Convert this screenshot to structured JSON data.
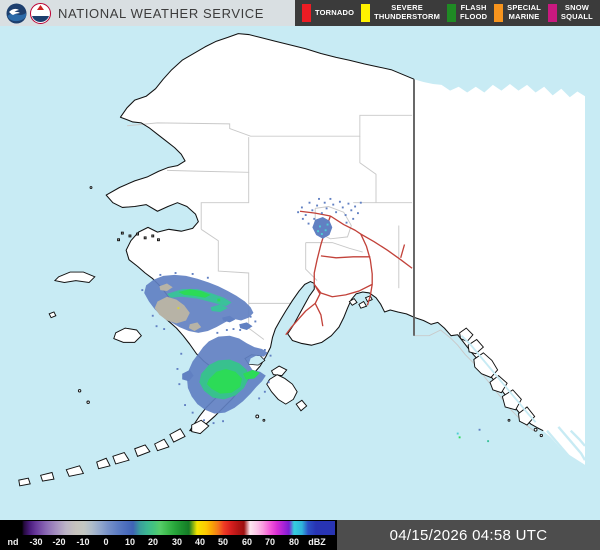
{
  "header": {
    "title": "NATIONAL WEATHER SERVICE"
  },
  "warning_legend": {
    "items": [
      {
        "label": "TORNADO",
        "color": "#ec1c24"
      },
      {
        "label": "SEVERE\nTHUNDERSTORM",
        "color": "#fff200"
      },
      {
        "label": "FLASH\nFLOOD",
        "color": "#1f8b24"
      },
      {
        "label": "SPECIAL\nMARINE",
        "color": "#f7941d"
      },
      {
        "label": "SNOW\nSQUALL",
        "color": "#c9197f"
      }
    ]
  },
  "reflectivity_scale": {
    "labels": [
      "nd",
      "-30",
      "-20",
      "-10",
      "0",
      "10",
      "20",
      "30",
      "40",
      "50",
      "60",
      "70",
      "80",
      "dBZ"
    ]
  },
  "status": {
    "timestamp": "04/15/2026 04:58 UTC"
  },
  "map": {
    "colors": {
      "water": "#c8ebf4",
      "land": "#ffffff",
      "coastline": "#111111",
      "borough_border": "#c9c9c9",
      "canada_border": "#616161",
      "highway": "#c2423a",
      "echo_low_gray": "#b7b3a6",
      "echo_blue": "#6180c2",
      "echo_teal": "#3bc19b",
      "echo_green": "#2cdb57",
      "echo_cyan": "#4ecdd4"
    }
  }
}
